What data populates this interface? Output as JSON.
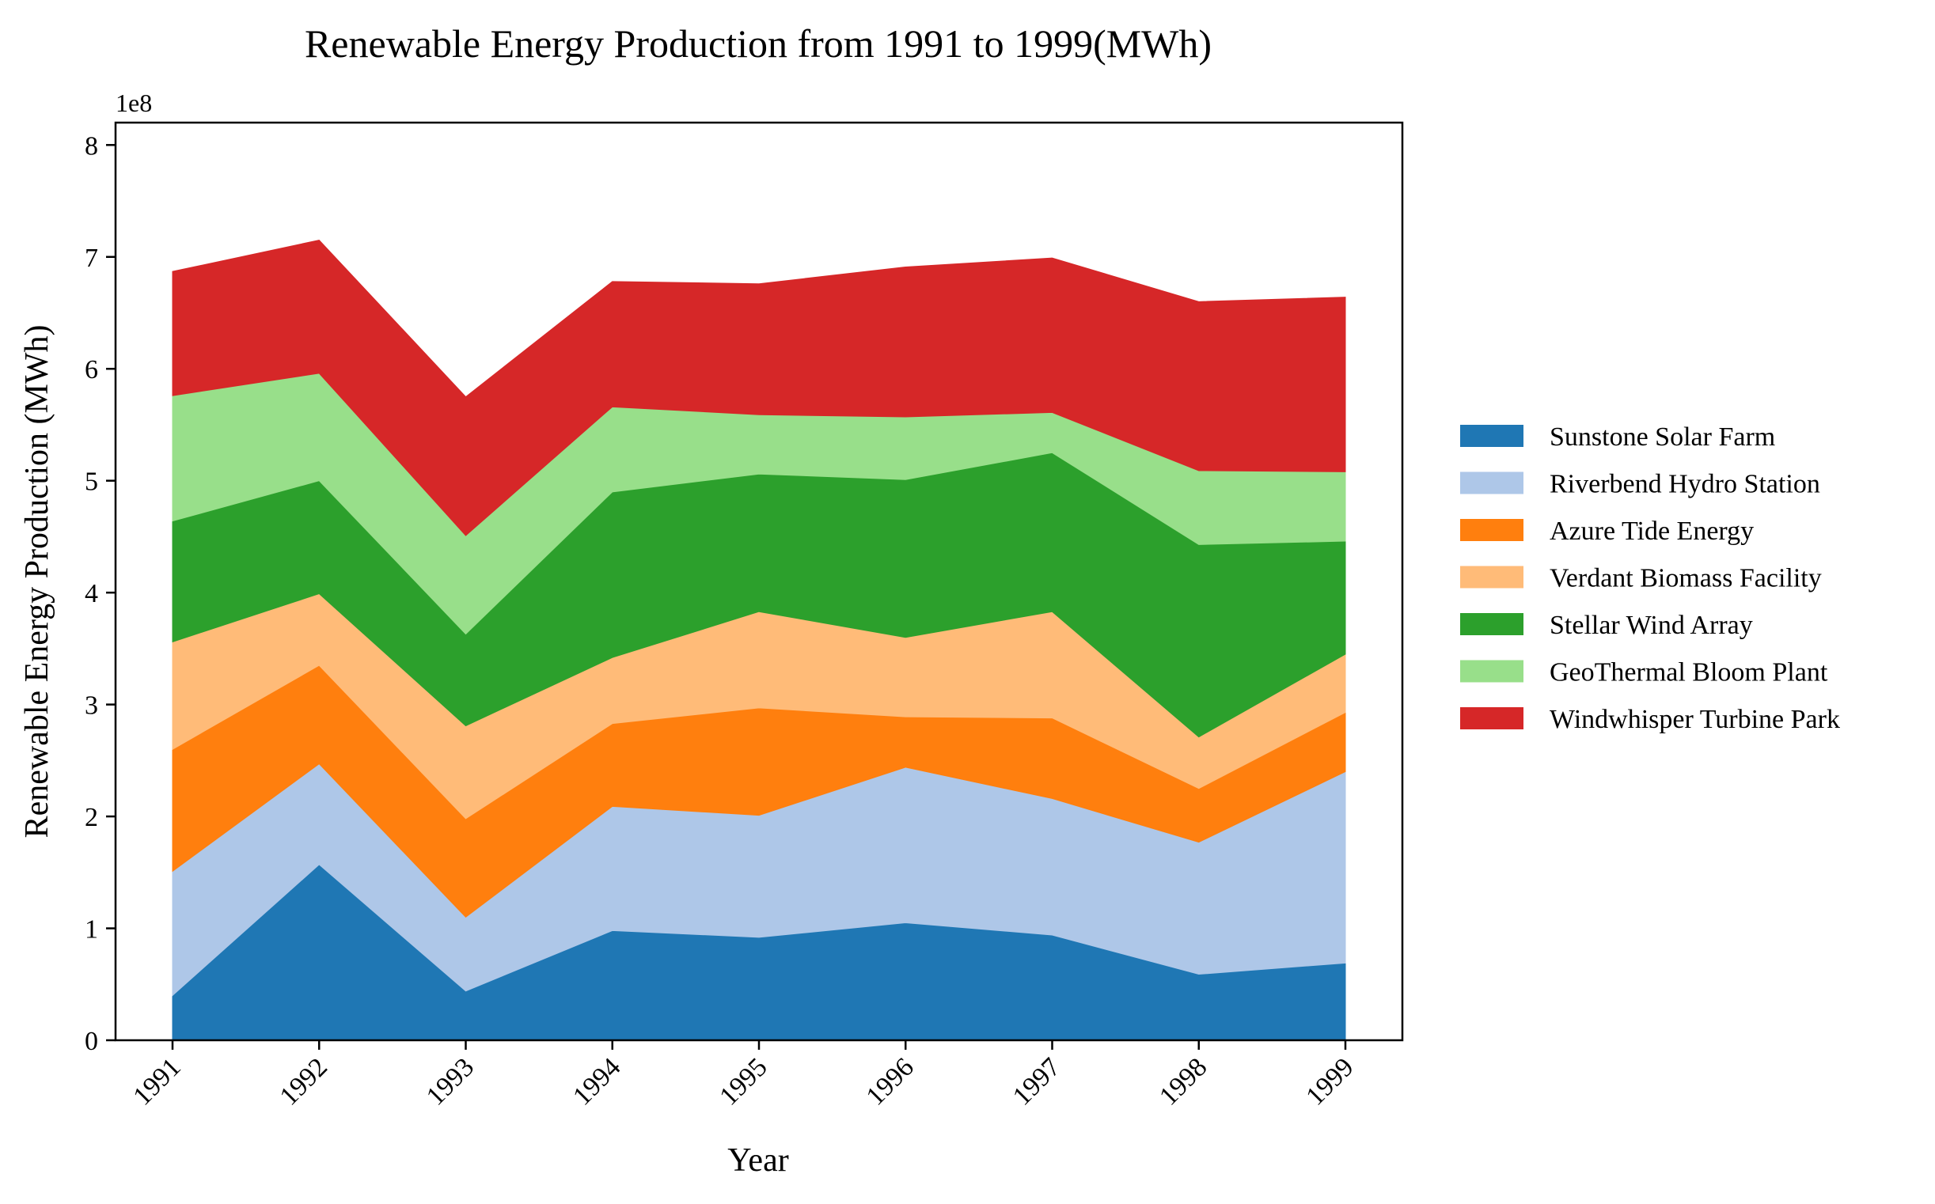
{
  "chart_data": {
    "type": "area",
    "stacked": true,
    "title": "Renewable Energy Production from 1991 to 1999(MWh)",
    "xlabel": "Year",
    "ylabel": "Renewable Energy Production (MWh)",
    "y_multiplier_label": "1e8",
    "x": [
      "1991",
      "1992",
      "1993",
      "1994",
      "1995",
      "1996",
      "1997",
      "1998",
      "1999"
    ],
    "ylim": [
      0,
      820000000
    ],
    "yticks": [
      0,
      100000000,
      200000000,
      300000000,
      400000000,
      500000000,
      600000000,
      700000000,
      800000000
    ],
    "ytick_labels": [
      "0",
      "1",
      "2",
      "3",
      "4",
      "5",
      "6",
      "7",
      "8"
    ],
    "grid": false,
    "legend_position": "right, outside plot area",
    "series": [
      {
        "name": "Sunstone Solar Farm",
        "color": "#1f77b4",
        "values": [
          40000000,
          157000000,
          44000000,
          98000000,
          92000000,
          105000000,
          94000000,
          59000000,
          69000000
        ]
      },
      {
        "name": "Riverbend Hydro Station",
        "color": "#aec7e8",
        "values": [
          111000000,
          90000000,
          66000000,
          111000000,
          109000000,
          139000000,
          122000000,
          118000000,
          171000000
        ]
      },
      {
        "name": "Azure Tide Energy",
        "color": "#ff7f0e",
        "values": [
          109000000,
          88000000,
          88000000,
          74000000,
          96000000,
          45000000,
          72000000,
          48000000,
          53000000
        ]
      },
      {
        "name": "Verdant Biomass Facility",
        "color": "#ffbb78",
        "values": [
          96000000,
          64000000,
          83000000,
          59000000,
          86000000,
          71000000,
          95000000,
          46000000,
          52000000
        ]
      },
      {
        "name": "Stellar Wind Array",
        "color": "#2ca02c",
        "values": [
          108000000,
          101000000,
          82000000,
          148000000,
          123000000,
          141000000,
          142000000,
          172000000,
          101000000
        ]
      },
      {
        "name": "GeoThermal Bloom Plant",
        "color": "#98df8a",
        "values": [
          112000000,
          96000000,
          88000000,
          76000000,
          53000000,
          56000000,
          36000000,
          66000000,
          62000000
        ]
      },
      {
        "name": "Windwhisper Turbine Park",
        "color": "#d62728",
        "values": [
          111000000,
          119000000,
          124000000,
          112000000,
          117000000,
          134000000,
          138000000,
          151000000,
          156000000
        ]
      }
    ]
  }
}
